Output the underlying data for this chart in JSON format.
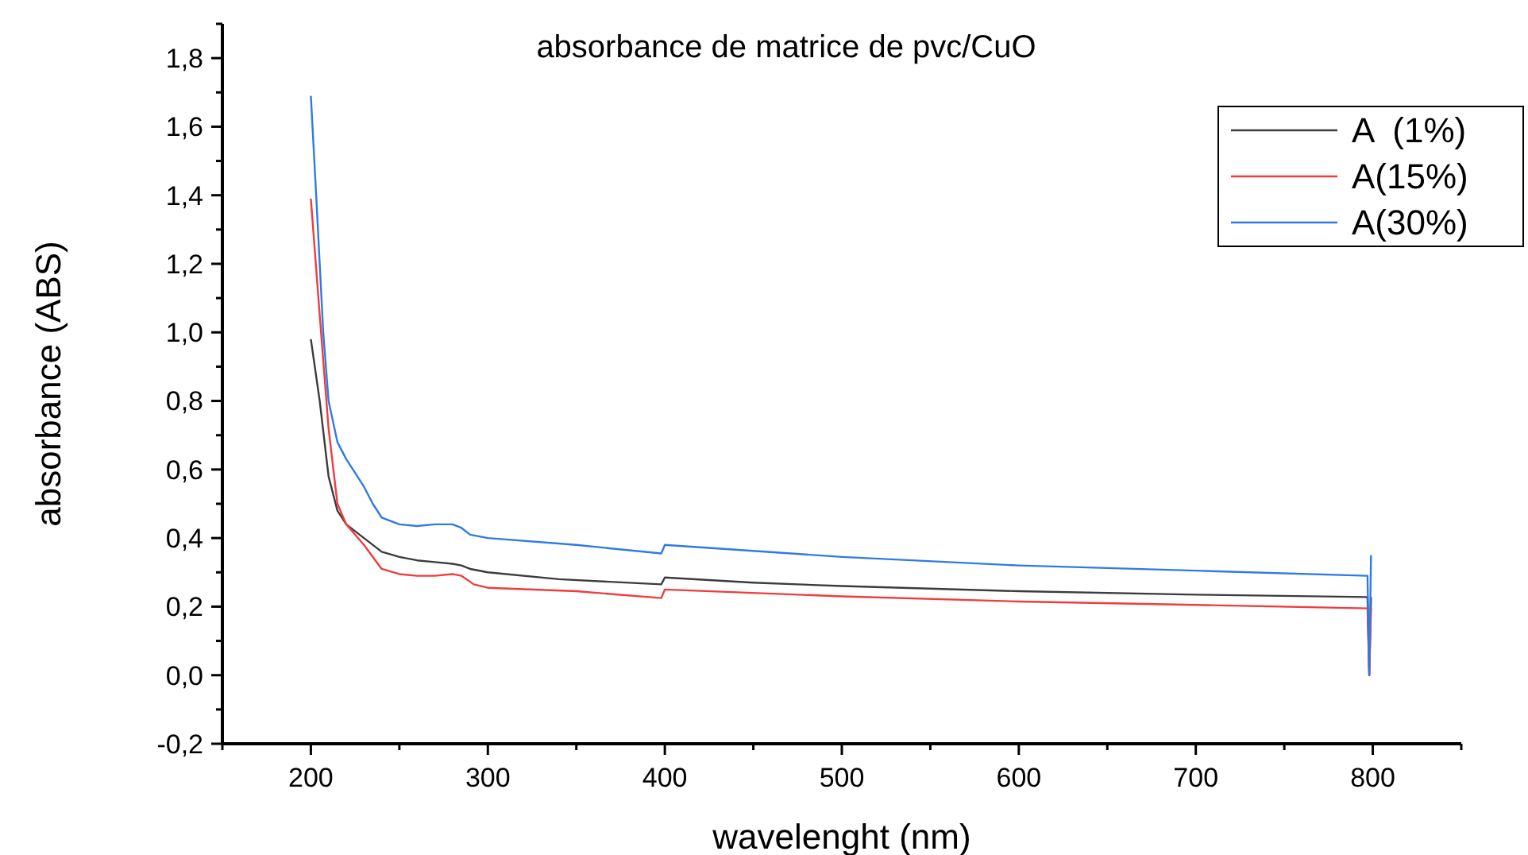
{
  "chart_data": {
    "type": "line",
    "title": "absorbance de matrice de pvc/CuO",
    "xlabel": "wavelenght (nm)",
    "ylabel": "absorbance (ABS)",
    "xlim": [
      150,
      850
    ],
    "xticks": [
      {
        "value": 150,
        "label": null
      },
      200,
      {
        "value": 250,
        "label": null
      },
      300,
      {
        "value": 350,
        "label": null
      },
      400,
      {
        "value": 450,
        "label": null
      },
      500,
      {
        "value": 550,
        "label": null
      },
      600,
      {
        "value": 650,
        "label": null
      },
      700,
      {
        "value": 750,
        "label": null
      },
      800,
      {
        "value": 850,
        "label": null
      }
    ],
    "ylim": [
      -0.2,
      1.9
    ],
    "yticks": [
      {
        "value": -0.2,
        "label": "-0,2"
      },
      {
        "value": -0.1,
        "label": null
      },
      {
        "value": 0,
        "label": "0,0"
      },
      {
        "value": 0.1,
        "label": null
      },
      {
        "value": 0.2,
        "label": "0,2"
      },
      {
        "value": 0.3,
        "label": null
      },
      {
        "value": 0.4,
        "label": "0,4"
      },
      {
        "value": 0.5,
        "label": null
      },
      {
        "value": 0.6,
        "label": "0,6"
      },
      {
        "value": 0.7,
        "label": null
      },
      {
        "value": 0.8,
        "label": "0,8"
      },
      {
        "value": 0.9,
        "label": null
      },
      {
        "value": 1.0,
        "label": "1,0"
      },
      {
        "value": 1.1,
        "label": null
      },
      {
        "value": 1.2,
        "label": "1,2"
      },
      {
        "value": 1.3,
        "label": null
      },
      {
        "value": 1.4,
        "label": "1,4"
      },
      {
        "value": 1.5,
        "label": null
      },
      {
        "value": 1.6,
        "label": "1,6"
      },
      {
        "value": 1.7,
        "label": null
      },
      {
        "value": 1.8,
        "label": "1,8"
      },
      {
        "value": 1.9,
        "label": null
      }
    ],
    "grid": false,
    "legend": "top right",
    "marker": "none",
    "line_style": "solid",
    "series": [
      {
        "name": "A  (1%)",
        "color": "#3c3c3c",
        "x": [
          200,
          205,
          210,
          215,
          220,
          230,
          240,
          250,
          260,
          270,
          280,
          285,
          290,
          300,
          340,
          398,
          400,
          450,
          500,
          600,
          700,
          797,
          798,
          799
        ],
        "values": [
          0.98,
          0.8,
          0.58,
          0.48,
          0.44,
          0.4,
          0.36,
          0.345,
          0.335,
          0.33,
          0.325,
          0.32,
          0.31,
          0.3,
          0.28,
          0.265,
          0.285,
          0.27,
          0.26,
          0.245,
          0.235,
          0.228,
          0.0,
          0.228
        ]
      },
      {
        "name": "A(15%)",
        "color": "#f03c3c",
        "x": [
          200,
          205,
          210,
          215,
          220,
          230,
          240,
          250,
          260,
          270,
          280,
          285,
          292,
          300,
          350,
          398,
          400,
          500,
          600,
          700,
          797,
          798,
          799
        ],
        "values": [
          1.39,
          1.05,
          0.72,
          0.5,
          0.44,
          0.38,
          0.31,
          0.295,
          0.29,
          0.29,
          0.295,
          0.29,
          0.265,
          0.255,
          0.245,
          0.225,
          0.25,
          0.23,
          0.215,
          0.205,
          0.195,
          0.0,
          0.195
        ]
      },
      {
        "name": "A(30%)",
        "color": "#2f7ae5",
        "x": [
          200,
          203,
          207,
          210,
          215,
          220,
          230,
          235,
          240,
          250,
          260,
          270,
          280,
          285,
          290,
          300,
          350,
          398,
          400,
          500,
          600,
          700,
          797,
          798,
          799
        ],
        "values": [
          1.69,
          1.4,
          1.0,
          0.8,
          0.68,
          0.63,
          0.55,
          0.5,
          0.46,
          0.44,
          0.435,
          0.44,
          0.44,
          0.43,
          0.41,
          0.4,
          0.38,
          0.355,
          0.38,
          0.345,
          0.32,
          0.305,
          0.29,
          0.0,
          0.35
        ]
      }
    ]
  }
}
